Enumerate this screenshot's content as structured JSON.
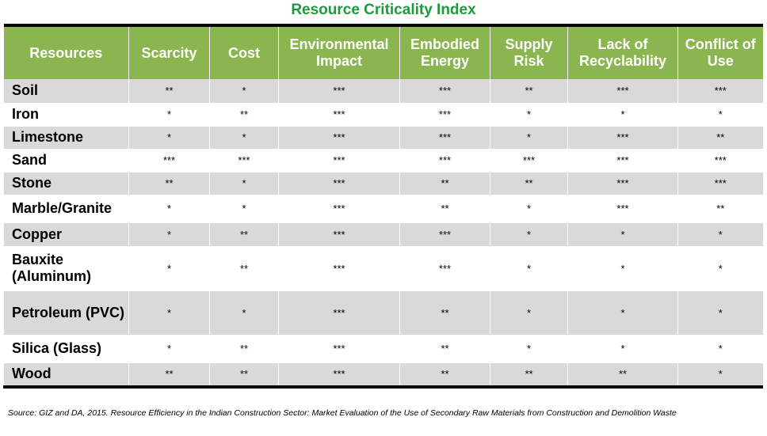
{
  "title": "Resource Criticality Index",
  "columns": [
    "Resources",
    "Scarcity",
    "Cost",
    "Environmental Impact",
    "Embodied Energy",
    "Supply Risk",
    "Lack of Recyclability",
    "Conflict of Use"
  ],
  "rows": [
    {
      "resource": "Soil",
      "values": [
        "**",
        "*",
        "***",
        "***",
        "**",
        "***",
        "***"
      ]
    },
    {
      "resource": "Iron",
      "values": [
        "*",
        "**",
        "***",
        "***",
        "*",
        "*",
        "*"
      ]
    },
    {
      "resource": "Limestone",
      "values": [
        "*",
        "*",
        "***",
        "***",
        "*",
        "***",
        "**"
      ]
    },
    {
      "resource": "Sand",
      "values": [
        "***",
        "***",
        "***",
        "***",
        "***",
        "***",
        "***"
      ]
    },
    {
      "resource": "Stone",
      "values": [
        "**",
        "*",
        "***",
        "**",
        "**",
        "***",
        "***"
      ]
    },
    {
      "resource": "Marble/Granite",
      "values": [
        "*",
        "*",
        "***",
        "**",
        "*",
        "***",
        "**"
      ]
    },
    {
      "resource": "Copper",
      "values": [
        "*",
        "**",
        "***",
        "***",
        "*",
        "*",
        "*"
      ]
    },
    {
      "resource": "Bauxite (Aluminum)",
      "values": [
        "*",
        "**",
        "***",
        "***",
        "*",
        "*",
        "*"
      ]
    },
    {
      "resource": "Petroleum (PVC)",
      "values": [
        "*",
        "*",
        "***",
        "**",
        "*",
        "*",
        "*"
      ]
    },
    {
      "resource": "Silica (Glass)",
      "values": [
        "*",
        "**",
        "***",
        "**",
        "*",
        "*",
        "*"
      ]
    },
    {
      "resource": "Wood",
      "values": [
        "**",
        "**",
        "***",
        "**",
        "**",
        "**",
        "*"
      ]
    }
  ],
  "source": "Source: GIZ and DA, 2015. Resource Efficiency in the Indian Construction Sector: Market Evaluation of the Use of Secondary Raw Materials from Construction and Demolition Waste",
  "colors": {
    "header": "#8ab54f",
    "title": "#1e9a3a",
    "shade": "#d9d9d9"
  }
}
